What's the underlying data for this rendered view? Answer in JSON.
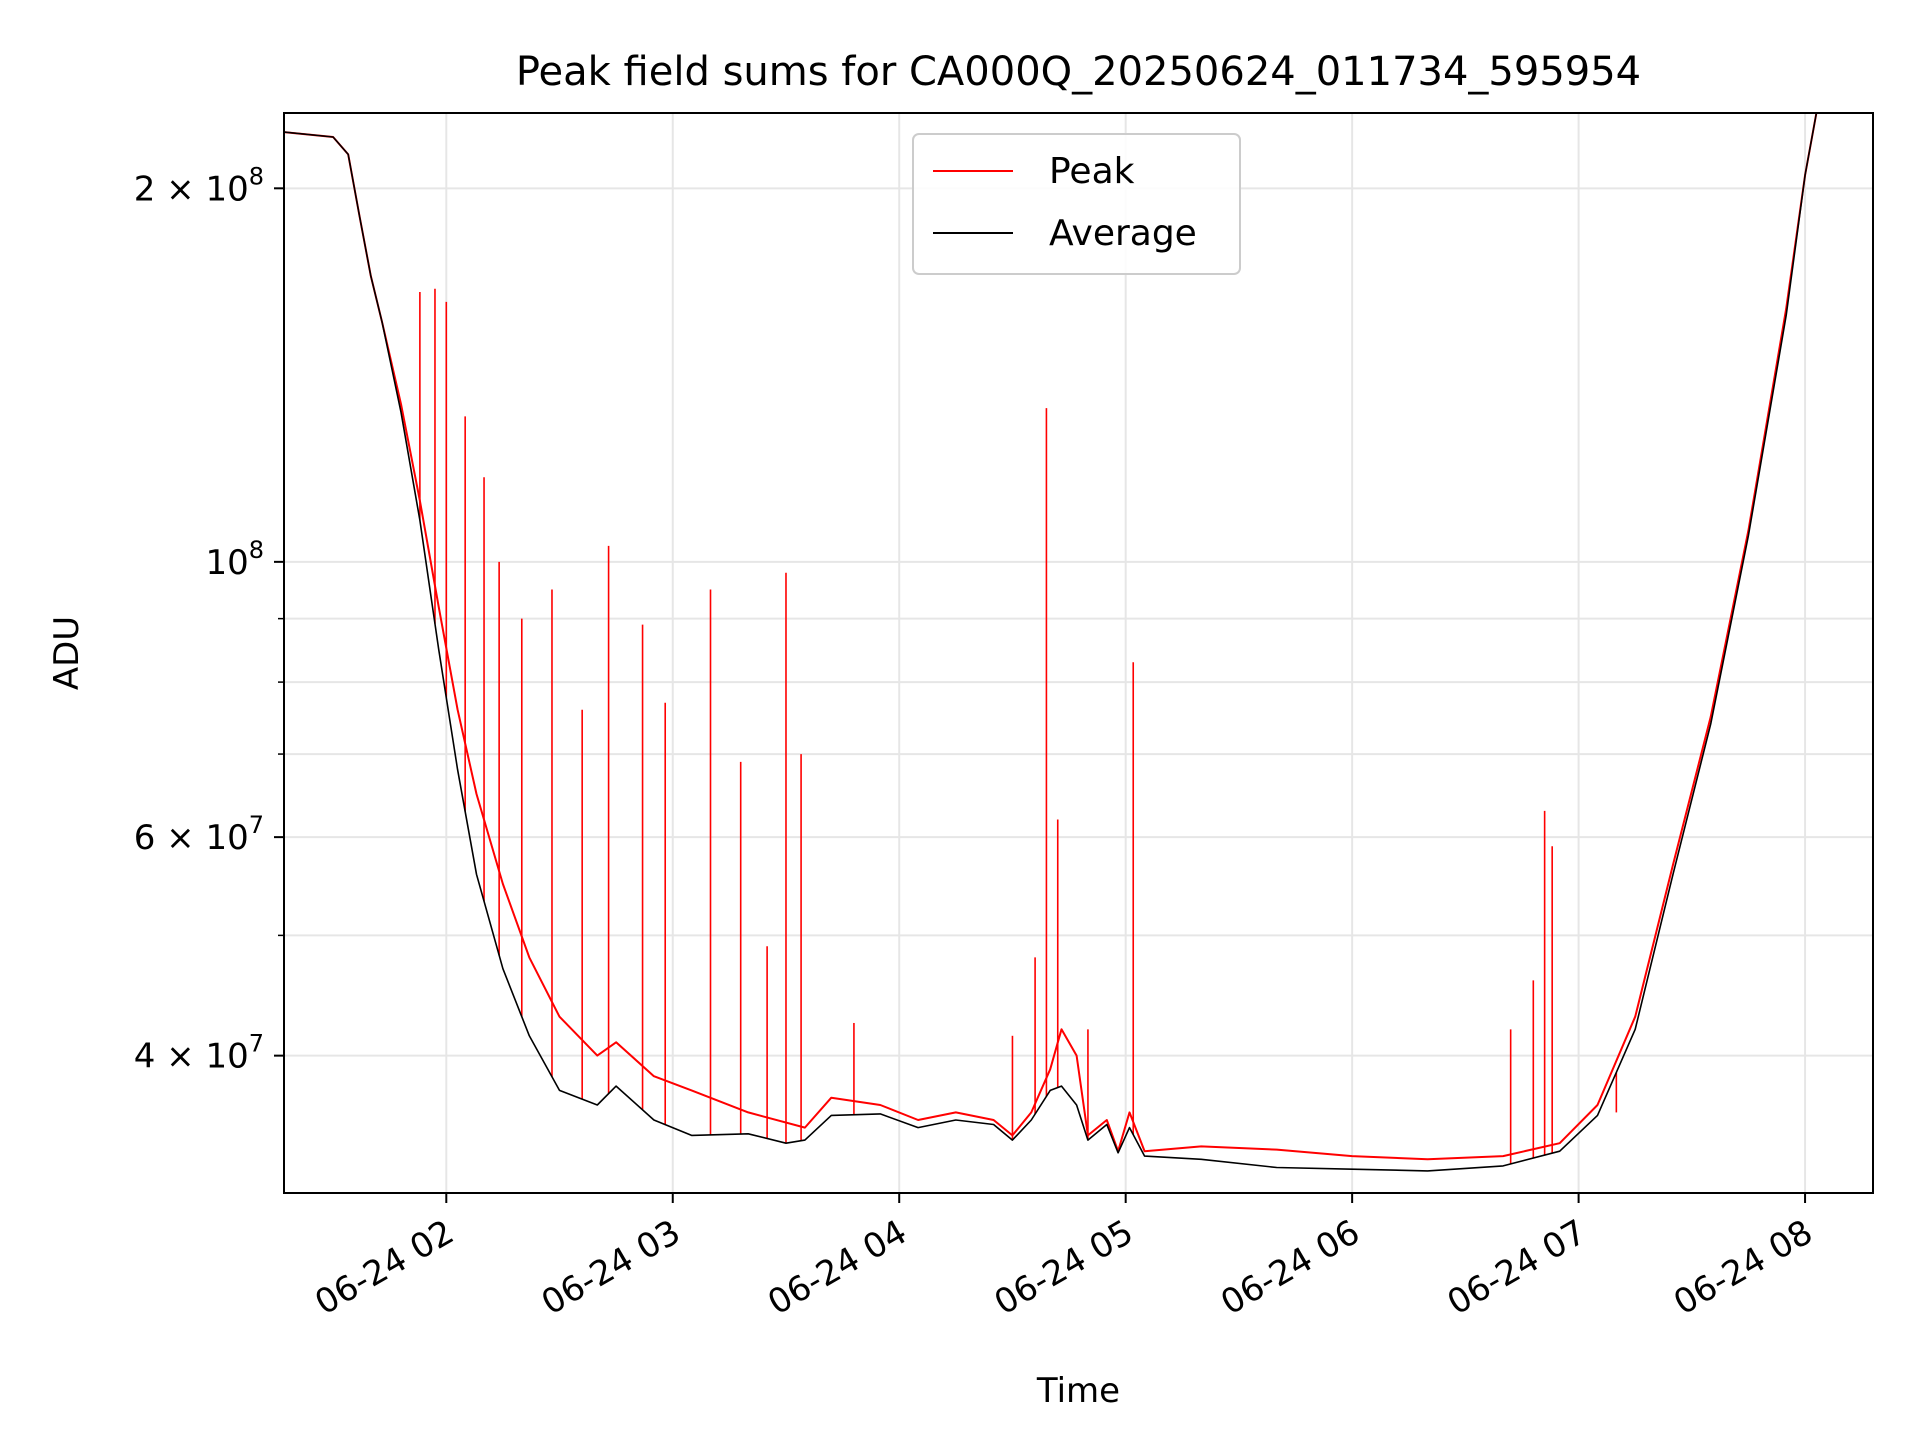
{
  "chart_data": {
    "type": "line",
    "title": "Peak field sums for CA000Q_20250624_011734_595954",
    "xlabel": "Time",
    "ylabel": "ADU",
    "x_scale": "time",
    "y_scale": "log",
    "xlim": [
      "2025-06-24 01:17",
      "2025-06-24 08:18"
    ],
    "ylim": [
      31000000,
      230000000
    ],
    "x_ticks": [
      {
        "t": "2025-06-24 02:00",
        "label": "06-24 02"
      },
      {
        "t": "2025-06-24 03:00",
        "label": "06-24 03"
      },
      {
        "t": "2025-06-24 04:00",
        "label": "06-24 04"
      },
      {
        "t": "2025-06-24 05:00",
        "label": "06-24 05"
      },
      {
        "t": "2025-06-24 06:00",
        "label": "06-24 06"
      },
      {
        "t": "2025-06-24 07:00",
        "label": "06-24 07"
      },
      {
        "t": "2025-06-24 08:00",
        "label": "06-24 08"
      }
    ],
    "y_ticks": [
      {
        "value": 200000000,
        "label": "2 × 10⁸",
        "base": "2 × 10",
        "exp": "8"
      },
      {
        "value": 100000000,
        "label": "10⁸",
        "base": "10",
        "exp": "8"
      },
      {
        "value": 60000000,
        "label": "6 × 10⁷",
        "base": "6 × 10",
        "exp": "7"
      },
      {
        "value": 40000000,
        "label": "4 × 10⁷",
        "base": "4 × 10",
        "exp": "7"
      }
    ],
    "y_minor_ticks": [
      300000000,
      90000000,
      80000000,
      70000000,
      50000000,
      30000000
    ],
    "grid": true,
    "legend_position": "top-center",
    "series": [
      {
        "name": "Peak",
        "color": "#ff0000",
        "points": [
          [
            "2025-06-24 01:17",
            222000000
          ],
          [
            "2025-06-24 01:30",
            220000000
          ],
          [
            "2025-06-24 01:34",
            213000000
          ],
          [
            "2025-06-24 01:37",
            190000000
          ],
          [
            "2025-06-24 01:40",
            170000000
          ],
          [
            "2025-06-24 01:43",
            156000000
          ],
          [
            "2025-06-24 01:48",
            134000000
          ],
          [
            "2025-06-24 01:53",
            112000000
          ],
          [
            "2025-06-24 01:58",
            92000000
          ],
          [
            "2025-06-24 02:03",
            76000000
          ],
          [
            "2025-06-24 02:08",
            65000000
          ],
          [
            "2025-06-24 02:15",
            55000000
          ],
          [
            "2025-06-24 02:22",
            48000000
          ],
          [
            "2025-06-24 02:30",
            43000000
          ],
          [
            "2025-06-24 02:40",
            40000000
          ],
          [
            "2025-06-24 02:45",
            41000000
          ],
          [
            "2025-06-24 02:55",
            38500000
          ],
          [
            "2025-06-24 03:05",
            37500000
          ],
          [
            "2025-06-24 03:20",
            36000000
          ],
          [
            "2025-06-24 03:35",
            35000000
          ],
          [
            "2025-06-24 03:42",
            37000000
          ],
          [
            "2025-06-24 03:55",
            36500000
          ],
          [
            "2025-06-24 04:05",
            35500000
          ],
          [
            "2025-06-24 04:15",
            36000000
          ],
          [
            "2025-06-24 04:25",
            35500000
          ],
          [
            "2025-06-24 04:30",
            34500000
          ],
          [
            "2025-06-24 04:35",
            36000000
          ],
          [
            "2025-06-24 04:40",
            39000000
          ],
          [
            "2025-06-24 04:43",
            42000000
          ],
          [
            "2025-06-24 04:47",
            40000000
          ],
          [
            "2025-06-24 04:50",
            34500000
          ],
          [
            "2025-06-24 04:55",
            35500000
          ],
          [
            "2025-06-24 04:58",
            33500000
          ],
          [
            "2025-06-24 05:01",
            36000000
          ],
          [
            "2025-06-24 05:05",
            33500000
          ],
          [
            "2025-06-24 05:20",
            33800000
          ],
          [
            "2025-06-24 05:40",
            33600000
          ],
          [
            "2025-06-24 06:00",
            33200000
          ],
          [
            "2025-06-24 06:20",
            33000000
          ],
          [
            "2025-06-24 06:40",
            33200000
          ],
          [
            "2025-06-24 06:55",
            34000000
          ],
          [
            "2025-06-24 07:05",
            36500000
          ],
          [
            "2025-06-24 07:15",
            43000000
          ],
          [
            "2025-06-24 07:25",
            57000000
          ],
          [
            "2025-06-24 07:35",
            75000000
          ],
          [
            "2025-06-24 07:45",
            106000000
          ],
          [
            "2025-06-24 07:55",
            160000000
          ],
          [
            "2025-06-24 08:00",
            205000000
          ],
          [
            "2025-06-24 08:03",
            230000000
          ],
          [
            "2025-06-24 08:18",
            230000000
          ]
        ]
      },
      {
        "name": "Average",
        "color": "#000000",
        "points": [
          [
            "2025-06-24 01:17",
            222000000
          ],
          [
            "2025-06-24 01:30",
            220000000
          ],
          [
            "2025-06-24 01:34",
            213000000
          ],
          [
            "2025-06-24 01:37",
            190000000
          ],
          [
            "2025-06-24 01:40",
            170000000
          ],
          [
            "2025-06-24 01:43",
            156000000
          ],
          [
            "2025-06-24 01:48",
            132000000
          ],
          [
            "2025-06-24 01:53",
            108000000
          ],
          [
            "2025-06-24 01:58",
            85000000
          ],
          [
            "2025-06-24 02:03",
            68000000
          ],
          [
            "2025-06-24 02:08",
            56000000
          ],
          [
            "2025-06-24 02:15",
            47000000
          ],
          [
            "2025-06-24 02:22",
            41500000
          ],
          [
            "2025-06-24 02:30",
            37500000
          ],
          [
            "2025-06-24 02:40",
            36500000
          ],
          [
            "2025-06-24 02:45",
            37800000
          ],
          [
            "2025-06-24 02:55",
            35500000
          ],
          [
            "2025-06-24 03:05",
            34500000
          ],
          [
            "2025-06-24 03:20",
            34600000
          ],
          [
            "2025-06-24 03:30",
            34000000
          ],
          [
            "2025-06-24 03:35",
            34200000
          ],
          [
            "2025-06-24 03:42",
            35800000
          ],
          [
            "2025-06-24 03:55",
            35900000
          ],
          [
            "2025-06-24 04:05",
            35000000
          ],
          [
            "2025-06-24 04:15",
            35500000
          ],
          [
            "2025-06-24 04:25",
            35200000
          ],
          [
            "2025-06-24 04:30",
            34200000
          ],
          [
            "2025-06-24 04:35",
            35500000
          ],
          [
            "2025-06-24 04:40",
            37500000
          ],
          [
            "2025-06-24 04:43",
            37800000
          ],
          [
            "2025-06-24 04:47",
            36500000
          ],
          [
            "2025-06-24 04:50",
            34200000
          ],
          [
            "2025-06-24 04:55",
            35200000
          ],
          [
            "2025-06-24 04:58",
            33400000
          ],
          [
            "2025-06-24 05:01",
            35000000
          ],
          [
            "2025-06-24 05:05",
            33200000
          ],
          [
            "2025-06-24 05:20",
            33000000
          ],
          [
            "2025-06-24 05:40",
            32500000
          ],
          [
            "2025-06-24 06:00",
            32400000
          ],
          [
            "2025-06-24 06:20",
            32300000
          ],
          [
            "2025-06-24 06:40",
            32600000
          ],
          [
            "2025-06-24 06:55",
            33500000
          ],
          [
            "2025-06-24 07:05",
            35800000
          ],
          [
            "2025-06-24 07:15",
            42000000
          ],
          [
            "2025-06-24 07:25",
            56000000
          ],
          [
            "2025-06-24 07:35",
            74000000
          ],
          [
            "2025-06-24 07:45",
            105000000
          ],
          [
            "2025-06-24 07:55",
            158000000
          ],
          [
            "2025-06-24 08:00",
            205000000
          ],
          [
            "2025-06-24 08:03",
            230000000
          ],
          [
            "2025-06-24 08:18",
            230000000
          ]
        ]
      }
    ],
    "peak_spikes": [
      [
        "2025-06-24 01:53",
        165000000
      ],
      [
        "2025-06-24 01:57",
        166000000
      ],
      [
        "2025-06-24 02:00",
        162000000
      ],
      [
        "2025-06-24 02:05",
        131000000
      ],
      [
        "2025-06-24 02:10",
        117000000
      ],
      [
        "2025-06-24 02:14",
        100000000
      ],
      [
        "2025-06-24 02:20",
        90000000
      ],
      [
        "2025-06-24 02:28",
        95000000
      ],
      [
        "2025-06-24 02:36",
        76000000
      ],
      [
        "2025-06-24 02:43",
        103000000
      ],
      [
        "2025-06-24 02:52",
        89000000
      ],
      [
        "2025-06-24 02:58",
        77000000
      ],
      [
        "2025-06-24 03:10",
        95000000
      ],
      [
        "2025-06-24 03:18",
        69000000
      ],
      [
        "2025-06-24 03:25",
        49000000
      ],
      [
        "2025-06-24 03:30",
        98000000
      ],
      [
        "2025-06-24 03:34",
        70000000
      ],
      [
        "2025-06-24 03:48",
        42500000
      ],
      [
        "2025-06-24 04:30",
        41500000
      ],
      [
        "2025-06-24 04:36",
        48000000
      ],
      [
        "2025-06-24 04:39",
        133000000
      ],
      [
        "2025-06-24 04:42",
        62000000
      ],
      [
        "2025-06-24 04:50",
        42000000
      ],
      [
        "2025-06-24 05:02",
        83000000
      ],
      [
        "2025-06-24 06:42",
        42000000
      ],
      [
        "2025-06-24 06:48",
        46000000
      ],
      [
        "2025-06-24 06:51",
        63000000
      ],
      [
        "2025-06-24 06:53",
        59000000
      ],
      [
        "2025-06-24 07:10",
        36000000
      ]
    ]
  }
}
